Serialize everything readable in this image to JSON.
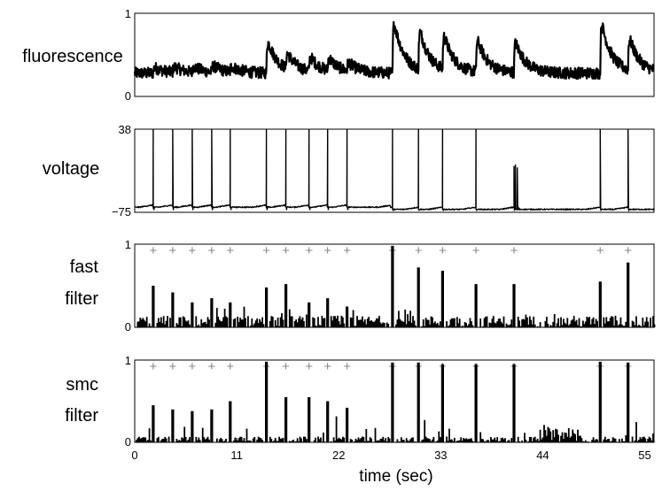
{
  "chart_data": {
    "type": "line",
    "x_axis": {
      "label": "time (sec)",
      "range": [
        0,
        56
      ],
      "ticks": [
        0,
        11,
        22,
        33,
        44,
        55
      ],
      "tick_labels": [
        "0",
        "11",
        "22",
        "33",
        "44",
        "55"
      ]
    },
    "spike_times": [
      2.0,
      4.1,
      6.2,
      8.3,
      10.3,
      14.2,
      16.3,
      18.8,
      20.8,
      22.9,
      27.8,
      30.6,
      33.2,
      36.8,
      40.9,
      50.2,
      53.2
    ],
    "panels": [
      {
        "label": "fluorescence",
        "y_range": [
          0,
          1
        ],
        "y_tick_labels": [
          "0",
          "1"
        ],
        "baseline": 0.28,
        "noise": 0.07,
        "events": [
          {
            "t": 2.0,
            "amp": 0.08
          },
          {
            "t": 4.1,
            "amp": 0.08
          },
          {
            "t": 6.2,
            "amp": 0.08
          },
          {
            "t": 8.3,
            "amp": 0.09
          },
          {
            "t": 10.3,
            "amp": 0.08
          },
          {
            "t": 14.2,
            "amp": 0.45
          },
          {
            "t": 16.3,
            "amp": 0.22
          },
          {
            "t": 18.8,
            "amp": 0.2
          },
          {
            "t": 20.8,
            "amp": 0.18
          },
          {
            "t": 22.9,
            "amp": 0.12
          },
          {
            "t": 27.8,
            "amp": 0.72
          },
          {
            "t": 30.6,
            "amp": 0.55
          },
          {
            "t": 33.2,
            "amp": 0.48
          },
          {
            "t": 36.8,
            "amp": 0.45
          },
          {
            "t": 40.9,
            "amp": 0.43
          },
          {
            "t": 50.2,
            "amp": 0.7
          },
          {
            "t": 53.2,
            "amp": 0.45
          }
        ]
      },
      {
        "label": "voltage",
        "y_range": [
          -75,
          38
        ],
        "y_tick_labels": [
          "−75",
          "38"
        ],
        "rest": -68,
        "spikes": [
          {
            "t": 2.0,
            "peak": 38
          },
          {
            "t": 4.1,
            "peak": 38
          },
          {
            "t": 6.2,
            "peak": 38
          },
          {
            "t": 8.3,
            "peak": 38
          },
          {
            "t": 10.3,
            "peak": 38
          },
          {
            "t": 14.2,
            "peak": 38
          },
          {
            "t": 16.3,
            "peak": 38
          },
          {
            "t": 18.8,
            "peak": 38
          },
          {
            "t": 20.8,
            "peak": 38
          },
          {
            "t": 22.9,
            "peak": 38
          },
          {
            "t": 27.8,
            "peak": 38
          },
          {
            "t": 30.6,
            "peak": 38
          },
          {
            "t": 33.2,
            "peak": 38
          },
          {
            "t": 36.8,
            "peak": 38
          },
          {
            "t": 40.9,
            "peak": -10
          },
          {
            "t": 50.2,
            "peak": 38
          },
          {
            "t": 53.2,
            "peak": 38
          }
        ]
      },
      {
        "label": "fast filter",
        "y_range": [
          0,
          1
        ],
        "y_tick_labels": [
          "0",
          "1"
        ],
        "spike_heights": [
          0.5,
          0.42,
          0.3,
          0.35,
          0.3,
          0.48,
          0.52,
          0.3,
          0.35,
          0.25,
          0.98,
          0.72,
          0.68,
          0.52,
          0.52,
          0.55,
          0.78
        ]
      },
      {
        "label": "smc filter",
        "y_range": [
          0,
          1
        ],
        "y_tick_labels": [
          "0",
          "1"
        ],
        "spike_heights": [
          0.45,
          0.4,
          0.38,
          0.4,
          0.5,
          0.98,
          0.55,
          0.55,
          0.5,
          0.42,
          0.97,
          0.97,
          0.95,
          0.95,
          0.95,
          0.98,
          0.97
        ]
      }
    ]
  }
}
